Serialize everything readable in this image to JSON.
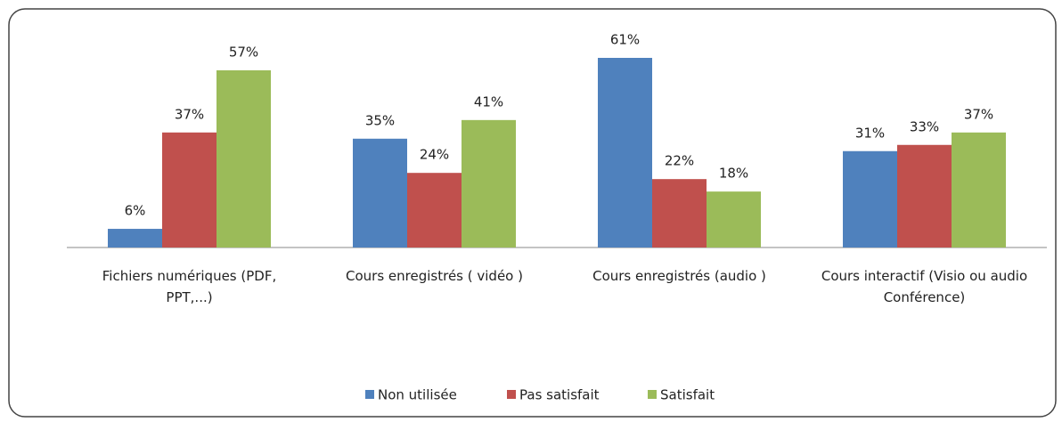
{
  "chart_data": {
    "type": "bar",
    "categories": [
      "Fichiers numériques (PDF, PPT,...)",
      "Cours enregistrés ( vidéo )",
      "Cours enregistrés (audio )",
      "Cours interactif (Visio ou audio Conférence)"
    ],
    "series": [
      {
        "name": "Non utilisée",
        "color": "#4f81bd",
        "values": [
          6,
          35,
          61,
          31
        ],
        "value_labels": [
          "6%",
          "35%",
          "61%",
          "31%"
        ]
      },
      {
        "name": "Pas satisfait",
        "color": "#c0504d",
        "values": [
          37,
          24,
          22,
          33
        ],
        "value_labels": [
          "37%",
          "24%",
          "22%",
          "33%"
        ]
      },
      {
        "name": "Satisfait",
        "color": "#9bbb59",
        "values": [
          57,
          41,
          18,
          37
        ],
        "value_labels": [
          "57%",
          "41%",
          "18%",
          "37%"
        ]
      }
    ],
    "legend": "bottom"
  }
}
